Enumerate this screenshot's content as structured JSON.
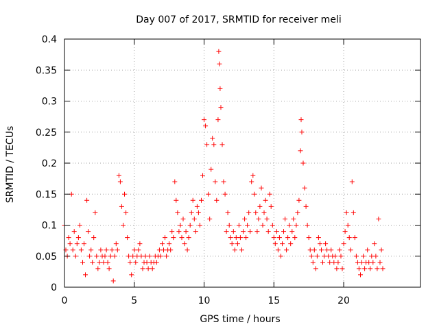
{
  "chart_data": {
    "type": "scatter",
    "title": "Day 007 of 2017, SRMTID for receiver meli",
    "xlabel": "GPS time / hours",
    "ylabel": "SRMTID / TECUs",
    "xlim": [
      0,
      25.5
    ],
    "ylim": [
      0,
      0.4
    ],
    "grid": true,
    "marker": "+",
    "x_ticks": [
      0,
      5,
      10,
      15,
      20
    ],
    "x_tick_labels": [
      "0",
      "5",
      "10",
      "15",
      "20"
    ],
    "y_ticks": [
      0,
      0.05,
      0.1,
      0.15,
      0.2,
      0.25,
      0.3,
      0.35,
      0.4
    ],
    "y_tick_labels": [
      "0",
      "0.05",
      "0.1",
      "0.15",
      "0.2",
      "0.25",
      "0.3",
      "0.35",
      "0.4"
    ],
    "colors": {
      "points": "#ff0000",
      "grid": "#a0a0a0",
      "axes": "#000000"
    },
    "series": [
      {
        "name": "SRMTID",
        "points": [
          [
            0.0,
            0.1
          ],
          [
            0.1,
            0.06
          ],
          [
            0.2,
            0.05
          ],
          [
            0.3,
            0.08
          ],
          [
            0.4,
            0.07
          ],
          [
            0.5,
            0.15
          ],
          [
            0.6,
            0.06
          ],
          [
            0.7,
            0.09
          ],
          [
            0.8,
            0.05
          ],
          [
            0.9,
            0.07
          ],
          [
            1.0,
            0.08
          ],
          [
            1.1,
            0.1
          ],
          [
            1.2,
            0.06
          ],
          [
            1.3,
            0.04
          ],
          [
            1.4,
            0.07
          ],
          [
            1.5,
            0.02
          ],
          [
            1.6,
            0.14
          ],
          [
            1.7,
            0.09
          ],
          [
            1.8,
            0.05
          ],
          [
            1.9,
            0.06
          ],
          [
            2.0,
            0.04
          ],
          [
            2.1,
            0.08
          ],
          [
            2.2,
            0.12
          ],
          [
            2.3,
            0.05
          ],
          [
            2.4,
            0.03
          ],
          [
            2.5,
            0.04
          ],
          [
            2.6,
            0.06
          ],
          [
            2.7,
            0.05
          ],
          [
            2.8,
            0.04
          ],
          [
            2.9,
            0.05
          ],
          [
            3.0,
            0.06
          ],
          [
            3.1,
            0.04
          ],
          [
            3.2,
            0.03
          ],
          [
            3.3,
            0.05
          ],
          [
            3.4,
            0.06
          ],
          [
            3.5,
            0.01
          ],
          [
            3.6,
            0.05
          ],
          [
            3.7,
            0.07
          ],
          [
            3.8,
            0.06
          ],
          [
            3.9,
            0.18
          ],
          [
            4.0,
            0.17
          ],
          [
            4.1,
            0.13
          ],
          [
            4.2,
            0.1
          ],
          [
            4.3,
            0.15
          ],
          [
            4.4,
            0.12
          ],
          [
            4.5,
            0.08
          ],
          [
            4.6,
            0.05
          ],
          [
            4.7,
            0.04
          ],
          [
            4.8,
            0.02
          ],
          [
            4.9,
            0.05
          ],
          [
            5.0,
            0.06
          ],
          [
            5.1,
            0.04
          ],
          [
            5.2,
            0.05
          ],
          [
            5.3,
            0.06
          ],
          [
            5.4,
            0.07
          ],
          [
            5.5,
            0.05
          ],
          [
            5.6,
            0.03
          ],
          [
            5.7,
            0.04
          ],
          [
            5.8,
            0.05
          ],
          [
            5.9,
            0.04
          ],
          [
            6.0,
            0.03
          ],
          [
            6.1,
            0.05
          ],
          [
            6.2,
            0.04
          ],
          [
            6.3,
            0.03
          ],
          [
            6.4,
            0.04
          ],
          [
            6.5,
            0.05
          ],
          [
            6.6,
            0.04
          ],
          [
            6.7,
            0.05
          ],
          [
            6.8,
            0.06
          ],
          [
            6.9,
            0.05
          ],
          [
            7.0,
            0.07
          ],
          [
            7.1,
            0.06
          ],
          [
            7.2,
            0.08
          ],
          [
            7.3,
            0.05
          ],
          [
            7.4,
            0.06
          ],
          [
            7.5,
            0.07
          ],
          [
            7.6,
            0.06
          ],
          [
            7.7,
            0.09
          ],
          [
            7.8,
            0.08
          ],
          [
            7.9,
            0.17
          ],
          [
            8.0,
            0.14
          ],
          [
            8.1,
            0.12
          ],
          [
            8.2,
            0.09
          ],
          [
            8.3,
            0.1
          ],
          [
            8.4,
            0.08
          ],
          [
            8.5,
            0.11
          ],
          [
            8.6,
            0.07
          ],
          [
            8.7,
            0.09
          ],
          [
            8.8,
            0.06
          ],
          [
            8.9,
            0.08
          ],
          [
            9.0,
            0.1
          ],
          [
            9.1,
            0.12
          ],
          [
            9.2,
            0.14
          ],
          [
            9.3,
            0.11
          ],
          [
            9.4,
            0.09
          ],
          [
            9.5,
            0.13
          ],
          [
            9.6,
            0.12
          ],
          [
            9.7,
            0.1
          ],
          [
            9.8,
            0.14
          ],
          [
            9.9,
            0.18
          ],
          [
            10.0,
            0.27
          ],
          [
            10.1,
            0.26
          ],
          [
            10.2,
            0.23
          ],
          [
            10.3,
            0.15
          ],
          [
            10.4,
            0.11
          ],
          [
            10.5,
            0.19
          ],
          [
            10.6,
            0.24
          ],
          [
            10.7,
            0.23
          ],
          [
            10.8,
            0.17
          ],
          [
            10.9,
            0.14
          ],
          [
            11.0,
            0.27
          ],
          [
            11.05,
            0.38
          ],
          [
            11.1,
            0.36
          ],
          [
            11.15,
            0.32
          ],
          [
            11.2,
            0.29
          ],
          [
            11.3,
            0.23
          ],
          [
            11.4,
            0.17
          ],
          [
            11.5,
            0.15
          ],
          [
            11.6,
            0.09
          ],
          [
            11.7,
            0.12
          ],
          [
            11.8,
            0.1
          ],
          [
            11.9,
            0.08
          ],
          [
            12.0,
            0.07
          ],
          [
            12.1,
            0.09
          ],
          [
            12.2,
            0.06
          ],
          [
            12.3,
            0.08
          ],
          [
            12.4,
            0.07
          ],
          [
            12.5,
            0.1
          ],
          [
            12.6,
            0.08
          ],
          [
            12.7,
            0.06
          ],
          [
            12.8,
            0.09
          ],
          [
            12.9,
            0.11
          ],
          [
            13.0,
            0.08
          ],
          [
            13.1,
            0.1
          ],
          [
            13.2,
            0.12
          ],
          [
            13.3,
            0.09
          ],
          [
            13.4,
            0.17
          ],
          [
            13.5,
            0.18
          ],
          [
            13.6,
            0.15
          ],
          [
            13.7,
            0.12
          ],
          [
            13.8,
            0.09
          ],
          [
            13.9,
            0.11
          ],
          [
            14.0,
            0.13
          ],
          [
            14.1,
            0.16
          ],
          [
            14.2,
            0.1
          ],
          [
            14.3,
            0.12
          ],
          [
            14.4,
            0.14
          ],
          [
            14.5,
            0.11
          ],
          [
            14.6,
            0.09
          ],
          [
            14.7,
            0.15
          ],
          [
            14.8,
            0.13
          ],
          [
            14.9,
            0.1
          ],
          [
            15.0,
            0.08
          ],
          [
            15.1,
            0.07
          ],
          [
            15.2,
            0.09
          ],
          [
            15.3,
            0.06
          ],
          [
            15.4,
            0.08
          ],
          [
            15.5,
            0.05
          ],
          [
            15.6,
            0.07
          ],
          [
            15.7,
            0.09
          ],
          [
            15.8,
            0.11
          ],
          [
            15.9,
            0.06
          ],
          [
            16.0,
            0.08
          ],
          [
            16.1,
            0.1
          ],
          [
            16.2,
            0.07
          ],
          [
            16.3,
            0.09
          ],
          [
            16.4,
            0.11
          ],
          [
            16.5,
            0.08
          ],
          [
            16.6,
            0.1
          ],
          [
            16.7,
            0.12
          ],
          [
            16.8,
            0.14
          ],
          [
            16.9,
            0.22
          ],
          [
            16.95,
            0.27
          ],
          [
            17.0,
            0.25
          ],
          [
            17.1,
            0.2
          ],
          [
            17.2,
            0.16
          ],
          [
            17.3,
            0.13
          ],
          [
            17.4,
            0.1
          ],
          [
            17.5,
            0.08
          ],
          [
            17.6,
            0.06
          ],
          [
            17.7,
            0.05
          ],
          [
            17.8,
            0.04
          ],
          [
            17.9,
            0.06
          ],
          [
            18.0,
            0.03
          ],
          [
            18.1,
            0.05
          ],
          [
            18.2,
            0.08
          ],
          [
            18.3,
            0.07
          ],
          [
            18.4,
            0.06
          ],
          [
            18.5,
            0.04
          ],
          [
            18.6,
            0.05
          ],
          [
            18.7,
            0.07
          ],
          [
            18.8,
            0.06
          ],
          [
            18.9,
            0.05
          ],
          [
            19.0,
            0.04
          ],
          [
            19.1,
            0.06
          ],
          [
            19.2,
            0.05
          ],
          [
            19.3,
            0.04
          ],
          [
            19.4,
            0.05
          ],
          [
            19.5,
            0.03
          ],
          [
            19.6,
            0.04
          ],
          [
            19.7,
            0.06
          ],
          [
            19.8,
            0.05
          ],
          [
            19.9,
            0.03
          ],
          [
            20.0,
            0.07
          ],
          [
            20.1,
            0.09
          ],
          [
            20.2,
            0.12
          ],
          [
            20.3,
            0.1
          ],
          [
            20.4,
            0.08
          ],
          [
            20.5,
            0.06
          ],
          [
            20.6,
            0.17
          ],
          [
            20.7,
            0.12
          ],
          [
            20.8,
            0.08
          ],
          [
            20.9,
            0.05
          ],
          [
            21.0,
            0.04
          ],
          [
            21.1,
            0.03
          ],
          [
            21.2,
            0.02
          ],
          [
            21.3,
            0.04
          ],
          [
            21.4,
            0.05
          ],
          [
            21.5,
            0.03
          ],
          [
            21.6,
            0.04
          ],
          [
            21.7,
            0.06
          ],
          [
            21.8,
            0.04
          ],
          [
            21.9,
            0.03
          ],
          [
            22.0,
            0.05
          ],
          [
            22.1,
            0.04
          ],
          [
            22.2,
            0.07
          ],
          [
            22.3,
            0.05
          ],
          [
            22.4,
            0.03
          ],
          [
            22.5,
            0.11
          ],
          [
            22.6,
            0.04
          ],
          [
            22.7,
            0.06
          ],
          [
            22.8,
            0.03
          ]
        ]
      }
    ]
  }
}
